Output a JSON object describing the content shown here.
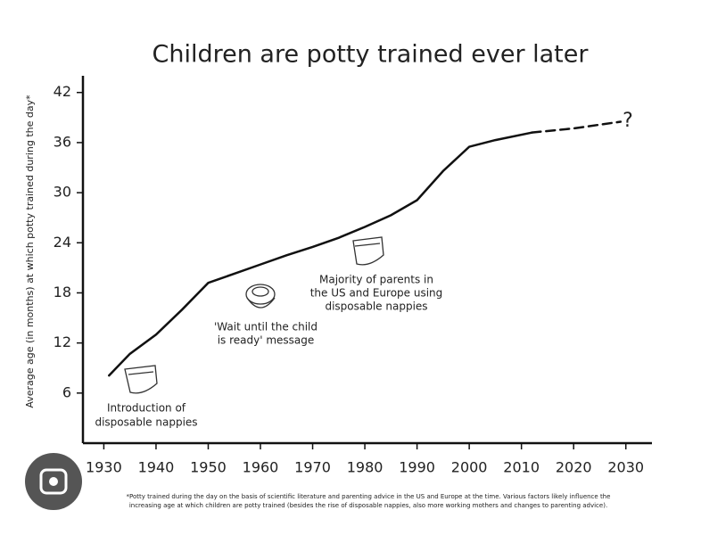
{
  "chart_data": {
    "type": "line",
    "title": "Children are potty trained ever later",
    "y_label": "Average age (in months) at which potty trained during the day*",
    "x": [
      1931,
      1935,
      1940,
      1945,
      1950,
      1955,
      1960,
      1965,
      1970,
      1975,
      1980,
      1985,
      1990,
      1995,
      2000,
      2005,
      2012,
      2020,
      2029
    ],
    "series": [
      {
        "color": "#111111",
        "dash": false,
        "values": [
          8.1,
          10.7,
          13,
          16,
          19.2,
          20.3,
          21.4,
          22.5,
          23.5,
          24.6,
          25.9,
          27.3,
          29.1,
          32.6,
          35.5,
          36.3,
          37.2,
          null,
          null
        ]
      },
      {
        "color": "#111111",
        "dash": true,
        "values": [
          null,
          null,
          null,
          null,
          null,
          null,
          null,
          null,
          null,
          null,
          null,
          null,
          null,
          null,
          null,
          null,
          37.2,
          37.7,
          38.5
        ]
      }
    ],
    "xlim": [
      1926,
      2035
    ],
    "ylim": [
      0,
      44
    ],
    "xticks": [
      1930,
      1940,
      1950,
      1960,
      1970,
      1980,
      1990,
      2000,
      2010,
      2020,
      2030
    ],
    "yticks": [
      6,
      12,
      18,
      24,
      30,
      36,
      42
    ],
    "annotations": [
      {
        "lines": [
          "Introduction of",
          "disposable nappies"
        ]
      },
      {
        "lines": [
          "'Wait until the child",
          "is ready' message"
        ]
      },
      {
        "lines": [
          "Majority of parents in",
          "the US and Europe using",
          "disposable nappies"
        ]
      },
      {
        "lines": [
          "?"
        ]
      }
    ],
    "footnote": [
      "*Potty trained during the day on the basis of scientific literature and parenting advice in the US and Europe at the time. Various factors likely influence the",
      "increasing age at which children are potty trained (besides the rise of disposable nappies, also more working mothers and changes to parenting advice)."
    ]
  }
}
